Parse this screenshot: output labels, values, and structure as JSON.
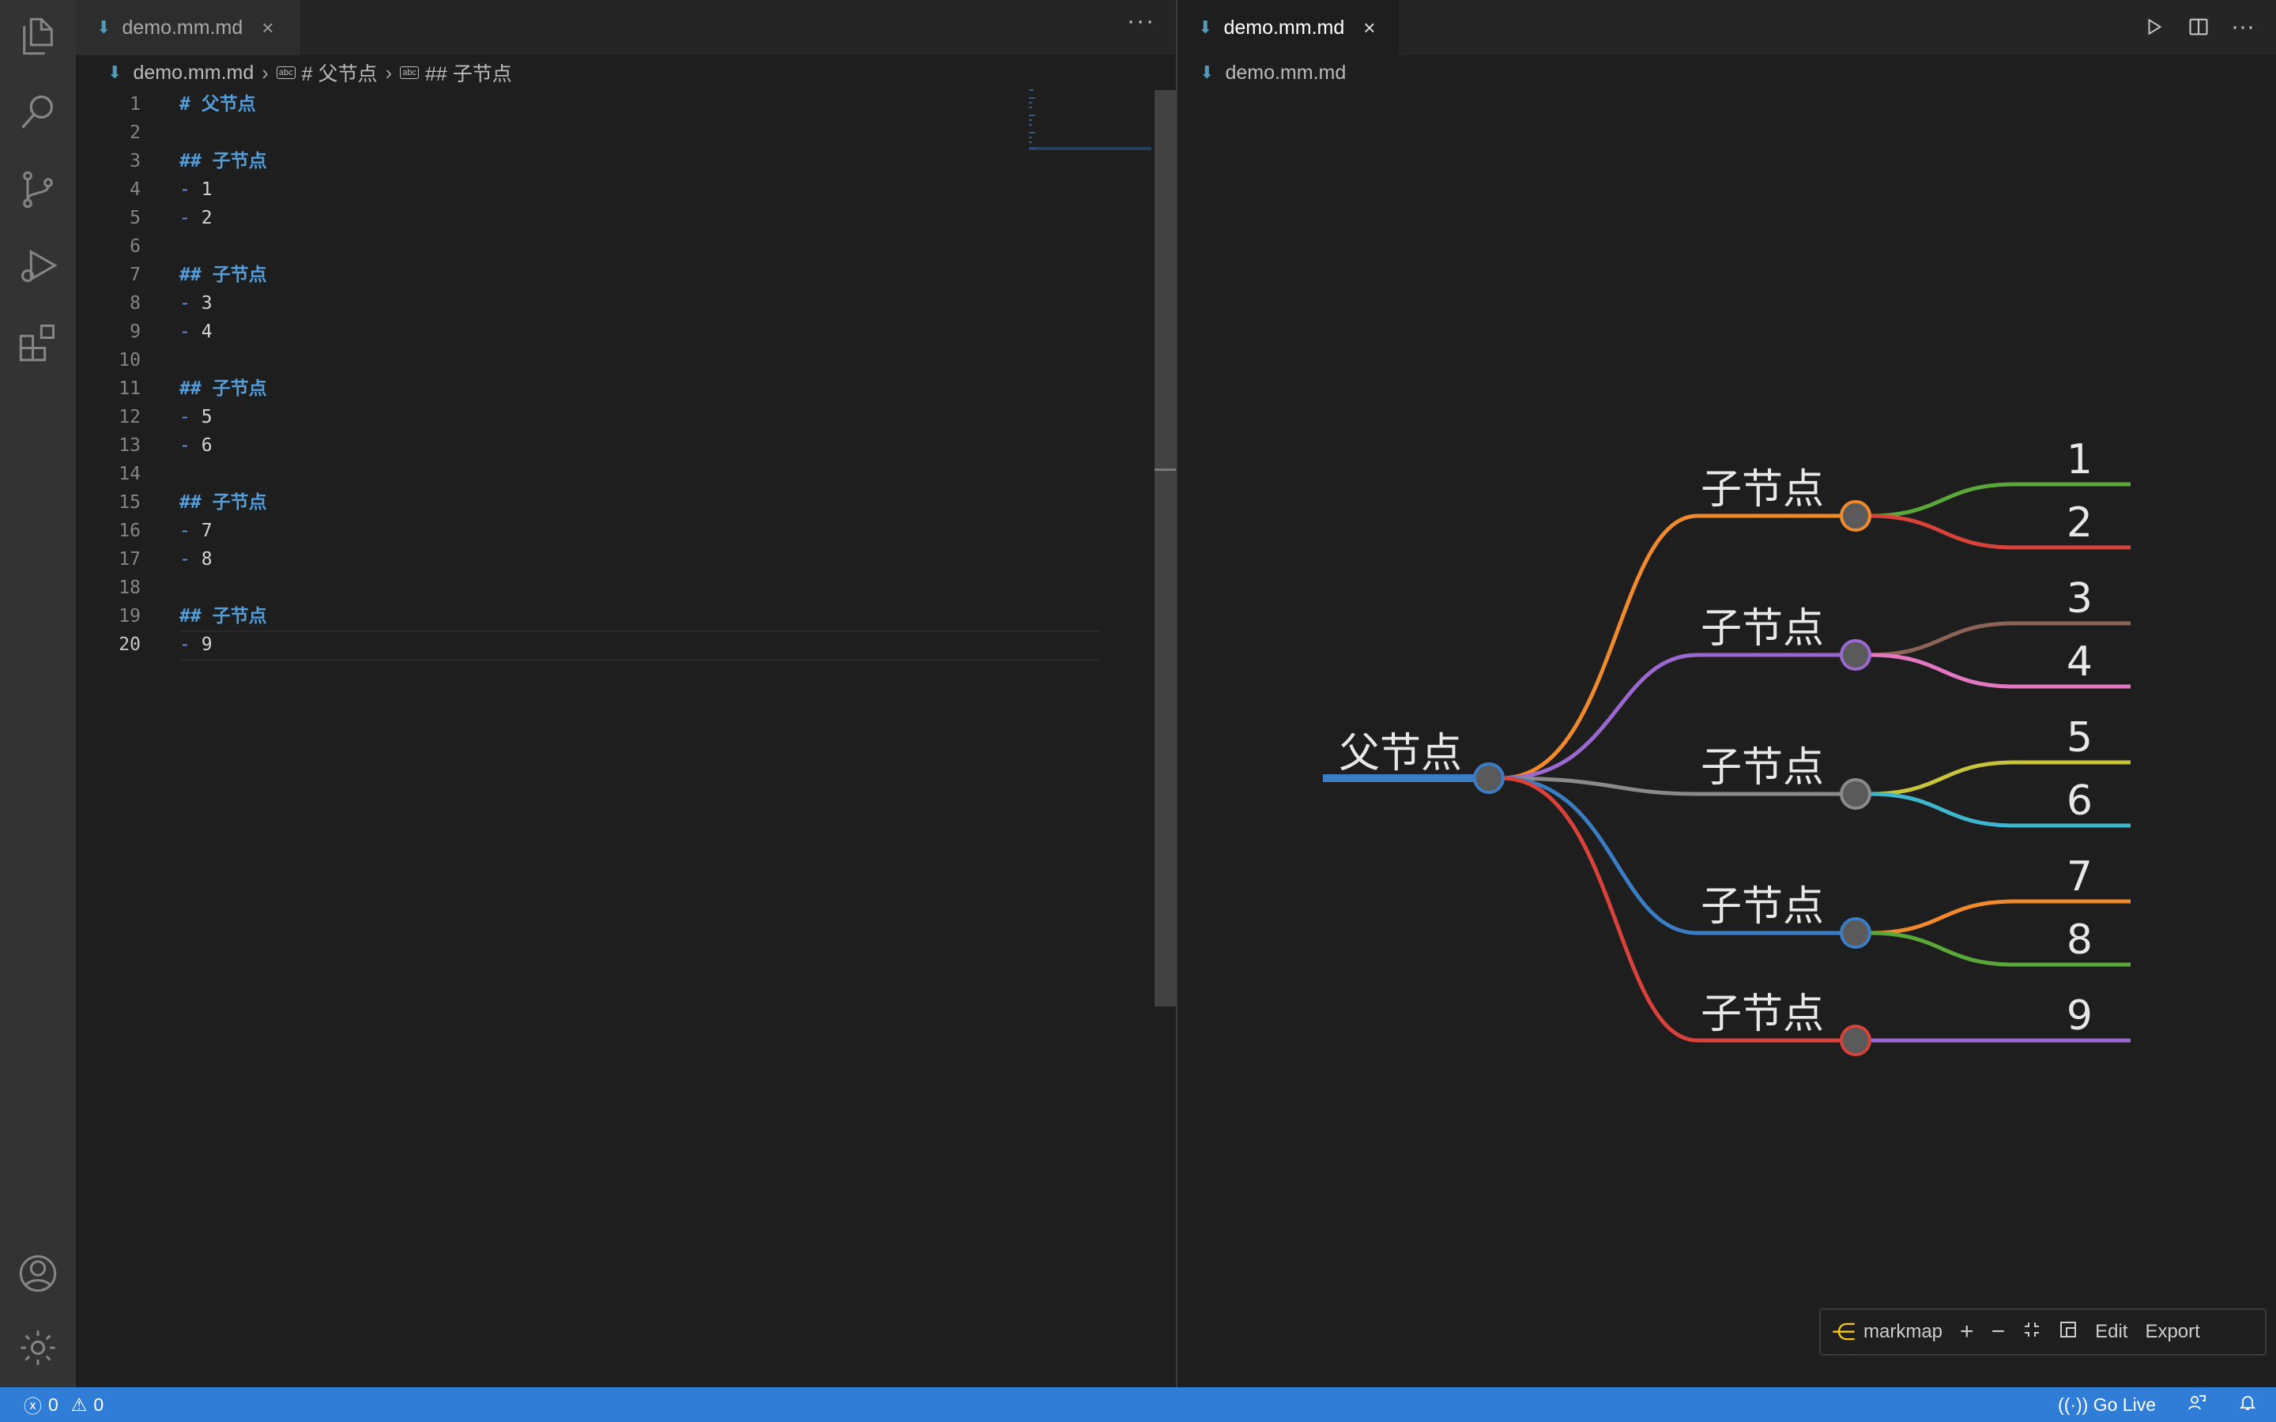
{
  "left_editor": {
    "tab": {
      "label": "demo.mm.md"
    },
    "more_actions": "···",
    "breadcrumb": [
      "demo.mm.md",
      "# 父节点",
      "## 子节点"
    ],
    "lines": [
      {
        "n": "1",
        "kind": "h",
        "marker": "#",
        "text": "父节点"
      },
      {
        "n": "2",
        "kind": "blank"
      },
      {
        "n": "3",
        "kind": "h",
        "marker": "##",
        "text": "子节点"
      },
      {
        "n": "4",
        "kind": "li",
        "marker": "-",
        "text": "1"
      },
      {
        "n": "5",
        "kind": "li",
        "marker": "-",
        "text": "2"
      },
      {
        "n": "6",
        "kind": "blank"
      },
      {
        "n": "7",
        "kind": "h",
        "marker": "##",
        "text": "子节点"
      },
      {
        "n": "8",
        "kind": "li",
        "marker": "-",
        "text": "3"
      },
      {
        "n": "9",
        "kind": "li",
        "marker": "-",
        "text": "4"
      },
      {
        "n": "10",
        "kind": "blank"
      },
      {
        "n": "11",
        "kind": "h",
        "marker": "##",
        "text": "子节点"
      },
      {
        "n": "12",
        "kind": "li",
        "marker": "-",
        "text": "5"
      },
      {
        "n": "13",
        "kind": "li",
        "marker": "-",
        "text": "6"
      },
      {
        "n": "14",
        "kind": "blank"
      },
      {
        "n": "15",
        "kind": "h",
        "marker": "##",
        "text": "子节点"
      },
      {
        "n": "16",
        "kind": "li",
        "marker": "-",
        "text": "7"
      },
      {
        "n": "17",
        "kind": "li",
        "marker": "-",
        "text": "8"
      },
      {
        "n": "18",
        "kind": "blank"
      },
      {
        "n": "19",
        "kind": "h",
        "marker": "##",
        "text": "子节点"
      },
      {
        "n": "20",
        "kind": "li",
        "marker": "-",
        "text": "9",
        "active": true
      }
    ]
  },
  "right_editor": {
    "tab": {
      "label": "demo.mm.md"
    },
    "breadcrumb": "demo.mm.md",
    "toolbar_icons": [
      "run-icon",
      "split-editor-icon",
      "more-actions-icon"
    ]
  },
  "mindmap": {
    "root": {
      "label": "父节点",
      "color": "#3b7dc4"
    },
    "children": [
      {
        "label": "子节点",
        "color": "#f08a2c",
        "leaves": [
          {
            "label": "1",
            "color": "#5aa83a"
          },
          {
            "label": "2",
            "color": "#d9423a"
          }
        ]
      },
      {
        "label": "子节点",
        "color": "#9b68d0",
        "leaves": [
          {
            "label": "3",
            "color": "#8c6456"
          },
          {
            "label": "4",
            "color": "#e377c2"
          }
        ]
      },
      {
        "label": "子节点",
        "color": "#8a8a8a",
        "leaves": [
          {
            "label": "5",
            "color": "#c9c53a"
          },
          {
            "label": "6",
            "color": "#3fb6cf"
          }
        ]
      },
      {
        "label": "子节点",
        "color": "#3b7dc4",
        "leaves": [
          {
            "label": "7",
            "color": "#f08a2c"
          },
          {
            "label": "8",
            "color": "#5aa83a"
          }
        ]
      },
      {
        "label": "子节点",
        "color": "#d9423a",
        "leaves": [
          {
            "label": "9",
            "color": "#9b68d0"
          }
        ]
      }
    ]
  },
  "markmap_toolbar": {
    "brand": "markmap",
    "zoom_in": "+",
    "zoom_out": "−",
    "edit": "Edit",
    "export": "Export"
  },
  "statusbar": {
    "errors": "0",
    "warnings": "0",
    "go_live": "Go Live"
  }
}
